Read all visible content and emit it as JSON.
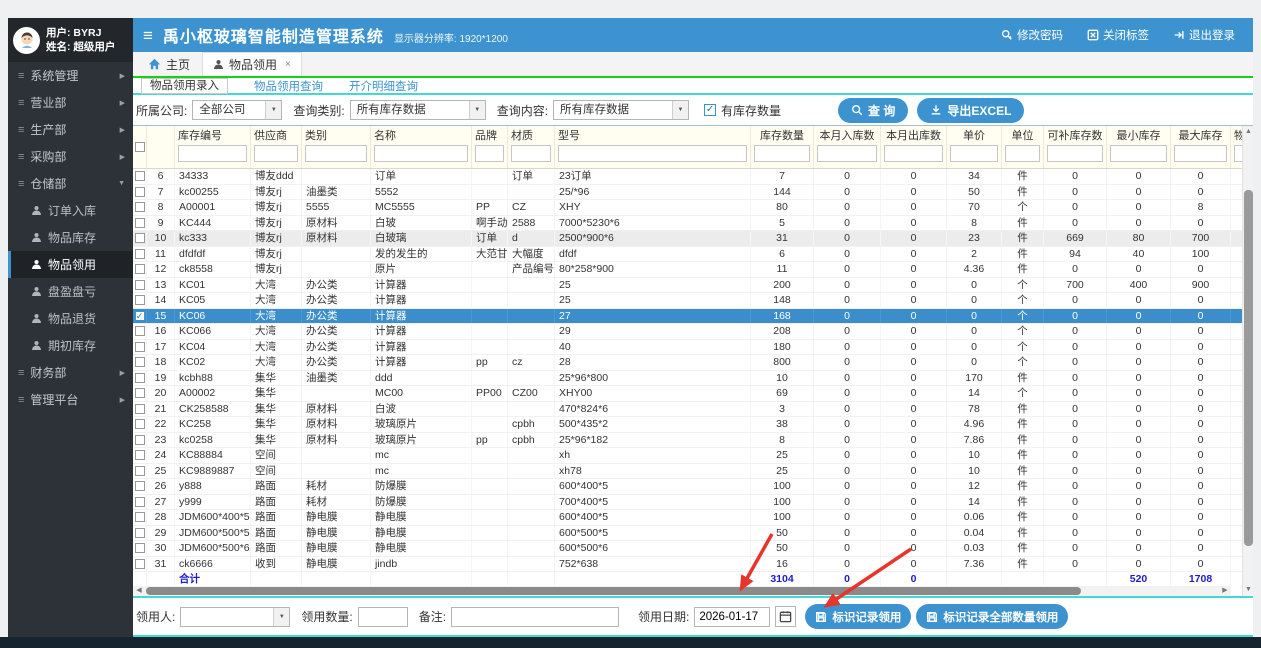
{
  "sidebar": {
    "user_label": "用户: BYRJ",
    "name_label": "姓名: 超级用户",
    "menu": [
      {
        "label": "系统管理",
        "arrow": "right"
      },
      {
        "label": "营业部",
        "arrow": "right"
      },
      {
        "label": "生产部",
        "arrow": "right"
      },
      {
        "label": "采购部",
        "arrow": "right"
      },
      {
        "label": "仓储部",
        "arrow": "down"
      },
      {
        "label": "订单入库",
        "child": true
      },
      {
        "label": "物品库存",
        "child": true
      },
      {
        "label": "物品领用",
        "child": true,
        "active": true
      },
      {
        "label": "盘盈盘亏",
        "child": true
      },
      {
        "label": "物品退货",
        "child": true
      },
      {
        "label": "期初库存",
        "child": true
      },
      {
        "label": "财务部",
        "arrow": "right"
      },
      {
        "label": "管理平台",
        "arrow": "right"
      }
    ]
  },
  "topbar": {
    "title": "禹小枢玻璃智能制造管理系统",
    "resolution": "显示器分辨率: 1920*1200",
    "change_password": "修改密码",
    "close_tabs": "关闭标签",
    "logout": "退出登录"
  },
  "tabs": {
    "home": "主页",
    "current": "物品领用",
    "close": "×"
  },
  "subtabs": [
    "物品领用录入",
    "物品领用查询",
    "开介明细查询"
  ],
  "filterbar": {
    "company_label": "所属公司:",
    "company_value": "全部公司",
    "category_label": "查询类别:",
    "category_value": "所有库存数据",
    "content_label": "查询内容:",
    "content_value": "所有库存数据",
    "has_stock_label": "有库存数量",
    "query_button": "查 询",
    "export_button": "导出EXCEL"
  },
  "table": {
    "columns": [
      "库存编号",
      "供应商",
      "类别",
      "名称",
      "品牌",
      "材质",
      "型号",
      "库存数量",
      "本月入库数",
      "本月出库数",
      "单价",
      "单位",
      "可补库存数",
      "最小库存",
      "最大库存",
      "物"
    ],
    "rows": [
      [
        "6",
        "34333",
        "博友ddd",
        "",
        "订单",
        "",
        "订单",
        "23订单",
        "7",
        "0",
        "0",
        "34",
        "件",
        "0",
        "0",
        "0"
      ],
      [
        "7",
        "kc00255",
        "博友rj",
        "油墨类",
        "5552",
        "",
        "",
        "25/*96",
        "144",
        "0",
        "0",
        "50",
        "件",
        "0",
        "0",
        "0"
      ],
      [
        "8",
        "A00001",
        "博友rj",
        "5555",
        "MC5555",
        "PP",
        "CZ",
        "XHY",
        "80",
        "0",
        "0",
        "70",
        "个",
        "0",
        "0",
        "8"
      ],
      [
        "9",
        "KC444",
        "博友rj",
        "原材料",
        "白玻",
        "啊手动阀实",
        "2588",
        "7000*5230*6",
        "5",
        "0",
        "0",
        "8",
        "件",
        "0",
        "0",
        "0"
      ],
      [
        "10",
        "kc333",
        "博友rj",
        "原材料",
        "白玻璃",
        "订单",
        "d",
        "2500*900*6",
        "31",
        "0",
        "0",
        "23",
        "件",
        "669",
        "80",
        "700"
      ],
      [
        "11",
        "dfdfdf",
        "博友rj",
        "",
        "发的发生的",
        "大范甘迪",
        "大幅度",
        "dfdf",
        "6",
        "0",
        "0",
        "2",
        "件",
        "94",
        "40",
        "100"
      ],
      [
        "12",
        "ck8558",
        "博友rj",
        "",
        "原片",
        "",
        "产品编号",
        "80*258*900",
        "11",
        "0",
        "0",
        "4.36",
        "件",
        "0",
        "0",
        "0"
      ],
      [
        "13",
        "KC01",
        "大湾",
        "办公类",
        "计算器",
        "",
        "",
        "25",
        "200",
        "0",
        "0",
        "0",
        "个",
        "700",
        "400",
        "900"
      ],
      [
        "14",
        "KC05",
        "大湾",
        "办公类",
        "计算器",
        "",
        "",
        "25",
        "148",
        "0",
        "0",
        "0",
        "个",
        "0",
        "0",
        "0"
      ],
      [
        "15",
        "KC06",
        "大湾",
        "办公类",
        "计算器",
        "",
        "",
        "27",
        "168",
        "0",
        "0",
        "0",
        "个",
        "0",
        "0",
        "0"
      ],
      [
        "16",
        "KC066",
        "大湾",
        "办公类",
        "计算器",
        "",
        "",
        "29",
        "208",
        "0",
        "0",
        "0",
        "个",
        "0",
        "0",
        "0"
      ],
      [
        "17",
        "KC04",
        "大湾",
        "办公类",
        "计算器",
        "",
        "",
        "40",
        "180",
        "0",
        "0",
        "0",
        "个",
        "0",
        "0",
        "0"
      ],
      [
        "18",
        "KC02",
        "大湾",
        "办公类",
        "计算器",
        "pp",
        "cz",
        "28",
        "800",
        "0",
        "0",
        "0",
        "个",
        "0",
        "0",
        "0"
      ],
      [
        "19",
        "kcbh88",
        "集华",
        "油墨类",
        "ddd",
        "",
        "",
        "25*96*800",
        "10",
        "0",
        "0",
        "170",
        "件",
        "0",
        "0",
        "0"
      ],
      [
        "20",
        "A00002",
        "集华",
        "",
        "MC00",
        "PP00",
        "CZ00",
        "XHY00",
        "69",
        "0",
        "0",
        "14",
        "个",
        "0",
        "0",
        "0"
      ],
      [
        "21",
        "CK258588",
        "集华",
        "原材料",
        "白波",
        "",
        "",
        "470*824*6",
        "3",
        "0",
        "0",
        "78",
        "件",
        "0",
        "0",
        "0"
      ],
      [
        "22",
        "KC258",
        "集华",
        "原材料",
        "玻璃原片",
        "",
        "cpbh",
        "500*435*2",
        "38",
        "0",
        "0",
        "4.96",
        "件",
        "0",
        "0",
        "0"
      ],
      [
        "23",
        "kc0258",
        "集华",
        "原材料",
        "玻璃原片",
        "pp",
        "cpbh",
        "25*96*182",
        "8",
        "0",
        "0",
        "7.86",
        "件",
        "0",
        "0",
        "0"
      ],
      [
        "24",
        "KC88884",
        "空间",
        "",
        "mc",
        "",
        "",
        "xh",
        "25",
        "0",
        "0",
        "10",
        "件",
        "0",
        "0",
        "0"
      ],
      [
        "25",
        "KC9889887",
        "空间",
        "",
        "mc",
        "",
        "",
        "xh78",
        "25",
        "0",
        "0",
        "10",
        "件",
        "0",
        "0",
        "0"
      ],
      [
        "26",
        "y888",
        "路面",
        "耗材",
        "防爆膜",
        "",
        "",
        "600*400*5",
        "100",
        "0",
        "0",
        "12",
        "件",
        "0",
        "0",
        "0"
      ],
      [
        "27",
        "y999",
        "路面",
        "耗材",
        "防爆膜",
        "",
        "",
        "700*400*5",
        "100",
        "0",
        "0",
        "14",
        "件",
        "0",
        "0",
        "0"
      ],
      [
        "28",
        "JDM600*400*5",
        "路面",
        "静电膜",
        "静电膜",
        "",
        "",
        "600*400*5",
        "100",
        "0",
        "0",
        "0.06",
        "件",
        "0",
        "0",
        "0"
      ],
      [
        "29",
        "JDM600*500*5",
        "路面",
        "静电膜",
        "静电膜",
        "",
        "",
        "600*500*5",
        "50",
        "0",
        "0",
        "0.04",
        "件",
        "0",
        "0",
        "0"
      ],
      [
        "30",
        "JDM600*500*6",
        "路面",
        "静电膜",
        "静电膜",
        "",
        "",
        "600*500*6",
        "50",
        "0",
        "0",
        "0.03",
        "件",
        "0",
        "0",
        "0"
      ],
      [
        "31",
        "ck6666",
        "收到",
        "静电膜",
        "jindb",
        "",
        "",
        "752*638",
        "16",
        "0",
        "0",
        "7.36",
        "件",
        "0",
        "0",
        "0"
      ]
    ],
    "selected_row": "15",
    "shaded_row": "10",
    "total": {
      "label": "合计",
      "stock_qty": "3104",
      "month_in": "0",
      "month_out": "0",
      "min_stock": "520",
      "max_stock": "1708"
    }
  },
  "footer": {
    "recipient_label": "领用人:",
    "qty_label": "领用数量:",
    "note_label": "备注:",
    "date_label": "领用日期:",
    "date_value": "2026-01-17",
    "mark_button": "标识记录领用",
    "mark_all_button": "标识记录全部数量领用"
  },
  "colors": {
    "accent_blue": "#3d93cf",
    "selected_row_blue": "#3c8dcb",
    "green_line": "#17d117",
    "cyan_line": "#43d9d3",
    "arrow_red": "#e8352b",
    "header_ivory": "#fffef0"
  }
}
